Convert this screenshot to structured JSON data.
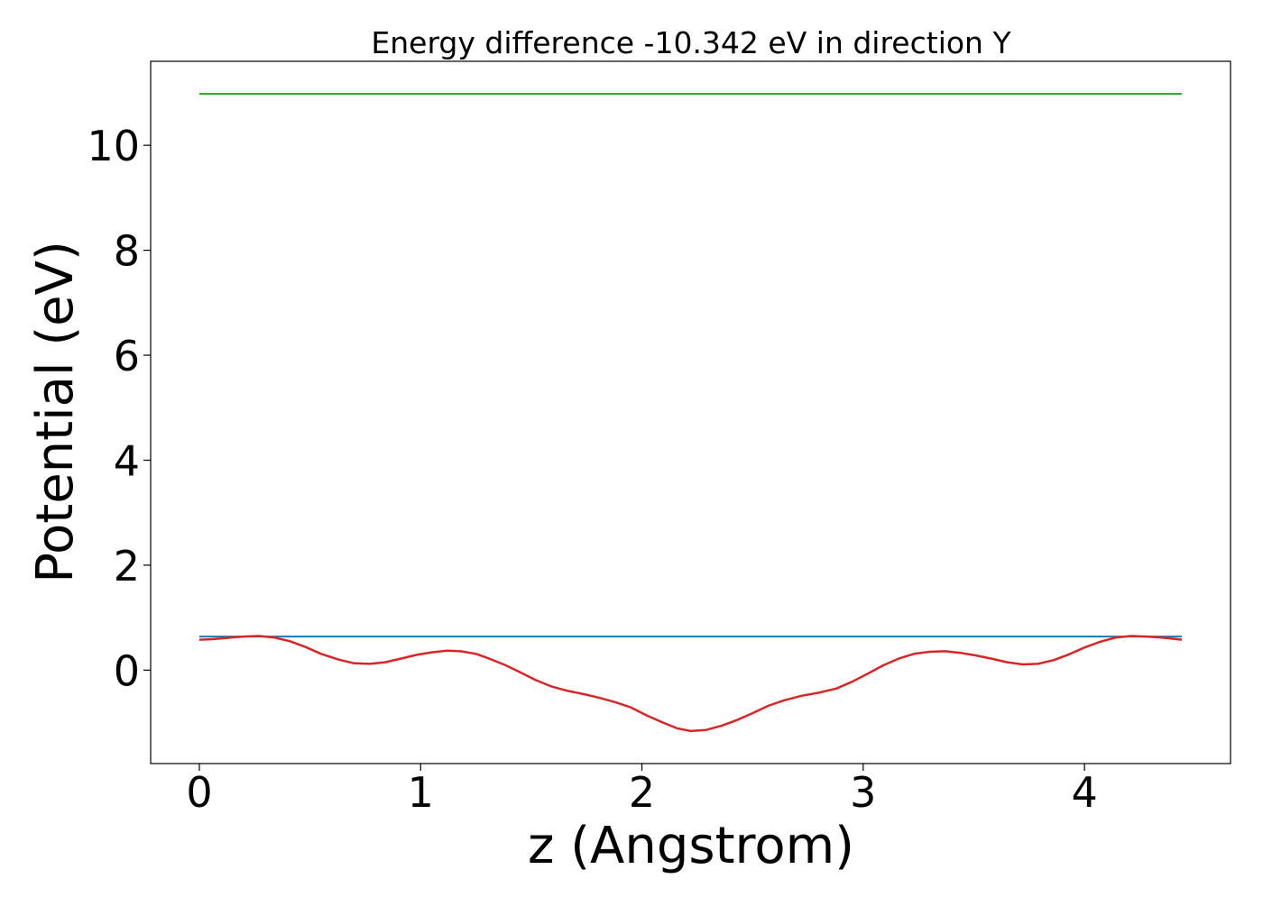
{
  "chart_data": {
    "type": "line",
    "title": "Energy difference -10.342 eV in direction Y",
    "xlabel": "z (Angstrom)",
    "ylabel": "Potential (eV)",
    "xlim": [
      -0.22,
      4.66
    ],
    "ylim": [
      -1.78,
      11.6
    ],
    "xticks": [
      0,
      1,
      2,
      3,
      4
    ],
    "yticks": [
      0,
      2,
      4,
      6,
      8,
      10
    ],
    "grid": false,
    "legend": "none",
    "series": [
      {
        "color": "#2ca02c",
        "x": [
          0,
          4.44
        ],
        "y": [
          10.98,
          10.98
        ]
      },
      {
        "color": "#1f77b4",
        "x": [
          0,
          4.44
        ],
        "y": [
          0.64,
          0.64
        ]
      },
      {
        "color": "#d62728",
        "x": [
          0,
          0.06,
          0.14,
          0.2,
          0.27,
          0.34,
          0.41,
          0.48,
          0.55,
          0.63,
          0.7,
          0.77,
          0.84,
          0.91,
          0.98,
          1.05,
          1.12,
          1.18,
          1.25,
          1.31,
          1.38,
          1.45,
          1.52,
          1.59,
          1.66,
          1.74,
          1.81,
          1.88,
          1.95,
          2.02,
          2.09,
          2.16,
          2.22,
          2.29,
          2.36,
          2.43,
          2.5,
          2.57,
          2.64,
          2.72,
          2.8,
          2.88,
          2.95,
          3.02,
          3.09,
          3.16,
          3.23,
          3.3,
          3.37,
          3.44,
          3.51,
          3.58,
          3.65,
          3.72,
          3.79,
          3.86,
          3.93,
          4.0,
          4.07,
          4.14,
          4.21,
          4.28,
          4.35,
          4.44
        ],
        "y": [
          0.58,
          0.59,
          0.62,
          0.64,
          0.65,
          0.62,
          0.55,
          0.44,
          0.31,
          0.2,
          0.13,
          0.12,
          0.15,
          0.22,
          0.29,
          0.34,
          0.37,
          0.36,
          0.31,
          0.22,
          0.1,
          -0.04,
          -0.19,
          -0.31,
          -0.39,
          -0.46,
          -0.53,
          -0.61,
          -0.71,
          -0.86,
          -0.99,
          -1.11,
          -1.16,
          -1.14,
          -1.06,
          -0.95,
          -0.82,
          -0.68,
          -0.58,
          -0.49,
          -0.43,
          -0.35,
          -0.22,
          -0.07,
          0.09,
          0.22,
          0.31,
          0.35,
          0.36,
          0.33,
          0.28,
          0.22,
          0.15,
          0.11,
          0.12,
          0.19,
          0.3,
          0.43,
          0.54,
          0.62,
          0.65,
          0.64,
          0.62,
          0.58
        ]
      }
    ]
  }
}
